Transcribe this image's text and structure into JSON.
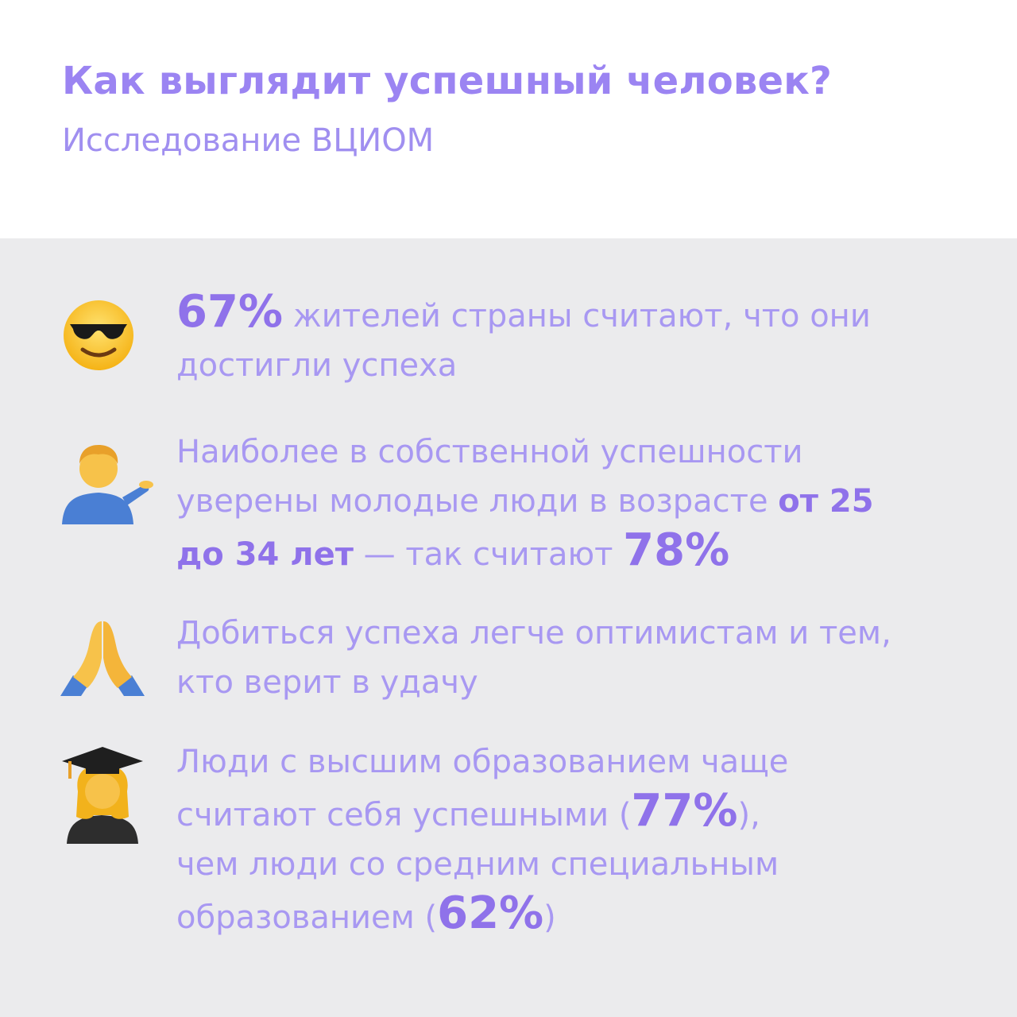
{
  "header": {
    "title": "Как выглядит успешный человек?",
    "subtitle": "Исследование ВЦИОМ"
  },
  "colors": {
    "accent": "#8f72ea",
    "text": "#a898f2",
    "panel": "#ebebed"
  },
  "items": [
    {
      "icon": "smiling-face-with-sunglasses-icon",
      "line1_big": "67%",
      "line1_rest": " жителей страны считают, что они",
      "line2": "достигли успеха"
    },
    {
      "icon": "man-tipping-hand-icon",
      "line1": "Наиболее в собственной успешности",
      "line2_text": "уверены молодые люди в возрасте ",
      "line2_bold": "от 25",
      "line3_bold": "до 34 лет",
      "line3_text": " — так считают ",
      "line3_big": "78%"
    },
    {
      "icon": "folded-hands-icon",
      "line1": "Добиться успеха легче оптимистам и тем,",
      "line2": "кто верит в удачу"
    },
    {
      "icon": "woman-student-icon",
      "line1": "Люди с высшим образованием чаще",
      "line2_text": "считают себя успешными (",
      "line2_big": "77%",
      "line2_end": "),",
      "line3": "чем люди со средним специальным",
      "line4_text": "образованием (",
      "line4_big": "62%",
      "line4_end": ")"
    }
  ]
}
